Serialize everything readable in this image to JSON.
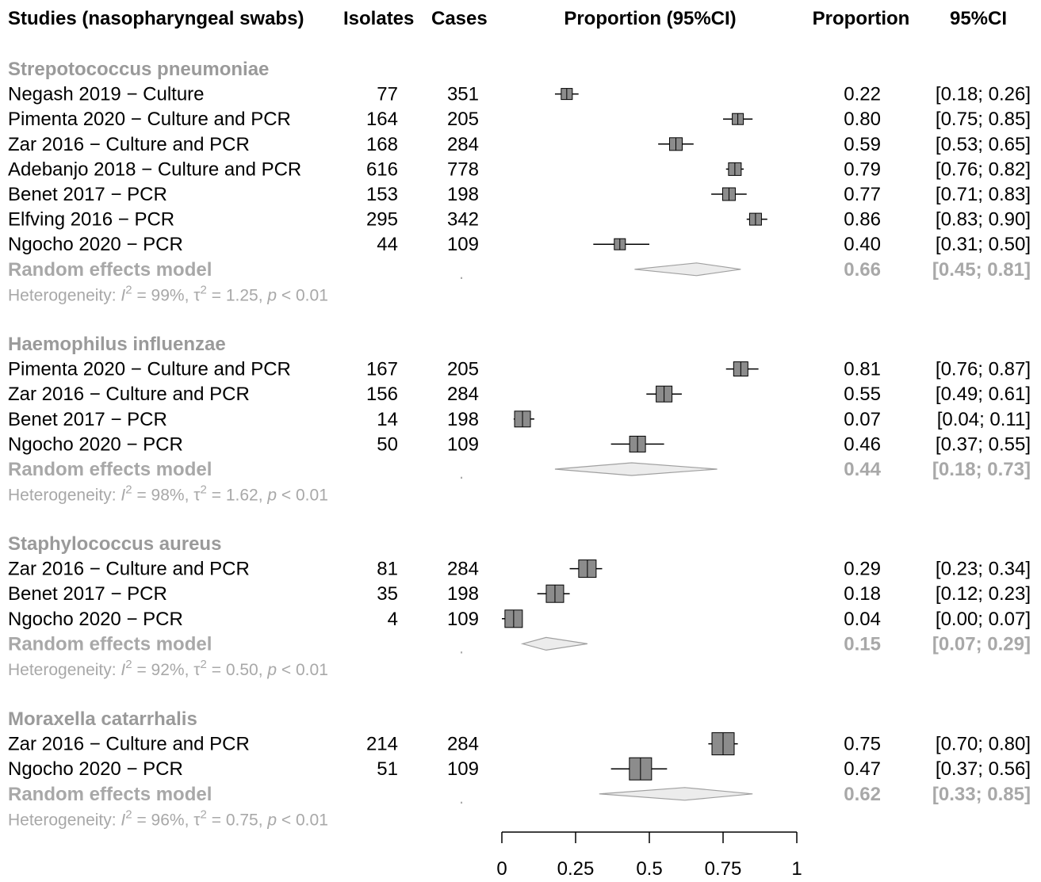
{
  "headers": {
    "studies": "Studies (nasopharyngeal swabs)",
    "isolates": "Isolates",
    "cases": "Cases",
    "plot": "Proportion (95%CI)",
    "proportion": "Proportion",
    "ci": "95%CI"
  },
  "chart_data": {
    "type": "forest",
    "xlim": [
      0,
      1
    ],
    "ticks": [
      "0",
      "0.25",
      "0.5",
      "0.75",
      "1"
    ],
    "tick_values": [
      0,
      0.25,
      0.5,
      0.75,
      1
    ],
    "groups": [
      {
        "name": "Strepotococcus pneumoniae",
        "studies": [
          {
            "label": "Negash 2019 − Culture",
            "isolates": "77",
            "cases": "351",
            "prop": 0.22,
            "lo": 0.18,
            "hi": 0.26,
            "prop_text": "0.22",
            "ci_text": "[0.18; 0.26]"
          },
          {
            "label": "Pimenta 2020 − Culture and PCR",
            "isolates": "164",
            "cases": "205",
            "prop": 0.8,
            "lo": 0.75,
            "hi": 0.85,
            "prop_text": "0.80",
            "ci_text": "[0.75; 0.85]"
          },
          {
            "label": "Zar 2016 − Culture and PCR",
            "isolates": "168",
            "cases": "284",
            "prop": 0.59,
            "lo": 0.53,
            "hi": 0.65,
            "prop_text": "0.59",
            "ci_text": "[0.53; 0.65]"
          },
          {
            "label": "Adebanjo 2018 − Culture and PCR",
            "isolates": "616",
            "cases": "778",
            "prop": 0.79,
            "lo": 0.76,
            "hi": 0.82,
            "prop_text": "0.79",
            "ci_text": "[0.76; 0.82]"
          },
          {
            "label": "Benet  2017 − PCR",
            "isolates": "153",
            "cases": "198",
            "prop": 0.77,
            "lo": 0.71,
            "hi": 0.83,
            "prop_text": "0.77",
            "ci_text": "[0.71; 0.83]"
          },
          {
            "label": "Elfving 2016 − PCR",
            "isolates": "295",
            "cases": "342",
            "prop": 0.86,
            "lo": 0.83,
            "hi": 0.9,
            "prop_text": "0.86",
            "ci_text": "[0.83; 0.90]"
          },
          {
            "label": "Ngocho 2020 − PCR",
            "isolates": "44",
            "cases": "109",
            "prop": 0.4,
            "lo": 0.31,
            "hi": 0.5,
            "prop_text": "0.40",
            "ci_text": "[0.31; 0.50]"
          }
        ],
        "model": {
          "label": "Random effects model",
          "cases": ".",
          "prop": 0.66,
          "lo": 0.45,
          "hi": 0.81,
          "prop_text": "0.66",
          "ci_text": "[0.45; 0.81]"
        },
        "het": {
          "i2": "99%",
          "tau2": "1.25",
          "p": "< 0.01"
        }
      },
      {
        "name": "Haemophilus influenzae",
        "studies": [
          {
            "label": "Pimenta 2020 − Culture and PCR",
            "isolates": "167",
            "cases": "205",
            "prop": 0.81,
            "lo": 0.76,
            "hi": 0.87,
            "prop_text": "0.81",
            "ci_text": "[0.76; 0.87]"
          },
          {
            "label": "Zar 2016 − Culture and PCR",
            "isolates": "156",
            "cases": "284",
            "prop": 0.55,
            "lo": 0.49,
            "hi": 0.61,
            "prop_text": "0.55",
            "ci_text": "[0.49; 0.61]"
          },
          {
            "label": "Benet  2017 − PCR",
            "isolates": "14",
            "cases": "198",
            "prop": 0.07,
            "lo": 0.04,
            "hi": 0.11,
            "prop_text": "0.07",
            "ci_text": "[0.04; 0.11]"
          },
          {
            "label": "Ngocho 2020 − PCR",
            "isolates": "50",
            "cases": "109",
            "prop": 0.46,
            "lo": 0.37,
            "hi": 0.55,
            "prop_text": "0.46",
            "ci_text": "[0.37; 0.55]"
          }
        ],
        "model": {
          "label": "Random effects model",
          "cases": ".",
          "prop": 0.44,
          "lo": 0.18,
          "hi": 0.73,
          "prop_text": "0.44",
          "ci_text": "[0.18; 0.73]"
        },
        "het": {
          "i2": "98%",
          "tau2": "1.62",
          "p": "< 0.01"
        }
      },
      {
        "name": "Staphylococcus aureus",
        "studies": [
          {
            "label": "Zar 2016 − Culture and PCR",
            "isolates": "81",
            "cases": "284",
            "prop": 0.29,
            "lo": 0.23,
            "hi": 0.34,
            "prop_text": "0.29",
            "ci_text": "[0.23; 0.34]"
          },
          {
            "label": "Benet  2017 − PCR",
            "isolates": "35",
            "cases": "198",
            "prop": 0.18,
            "lo": 0.12,
            "hi": 0.23,
            "prop_text": "0.18",
            "ci_text": "[0.12; 0.23]"
          },
          {
            "label": "Ngocho 2020 − PCR",
            "isolates": "4",
            "cases": "109",
            "prop": 0.04,
            "lo": 0.0,
            "hi": 0.07,
            "prop_text": "0.04",
            "ci_text": "[0.00; 0.07]"
          }
        ],
        "model": {
          "label": "Random effects model",
          "cases": ".",
          "prop": 0.15,
          "lo": 0.07,
          "hi": 0.29,
          "prop_text": "0.15",
          "ci_text": "[0.07; 0.29]"
        },
        "het": {
          "i2": "92%",
          "tau2": "0.50",
          "p": "< 0.01"
        }
      },
      {
        "name": "Moraxella catarrhalis",
        "studies": [
          {
            "label": "Zar 2016 − Culture and PCR",
            "isolates": "214",
            "cases": "284",
            "prop": 0.75,
            "lo": 0.7,
            "hi": 0.8,
            "prop_text": "0.75",
            "ci_text": "[0.70; 0.80]"
          },
          {
            "label": "Ngocho 2020 − PCR",
            "isolates": "51",
            "cases": "109",
            "prop": 0.47,
            "lo": 0.37,
            "hi": 0.56,
            "prop_text": "0.47",
            "ci_text": "[0.37; 0.56]"
          }
        ],
        "model": {
          "label": "Random effects model",
          "cases": ".",
          "prop": 0.62,
          "lo": 0.33,
          "hi": 0.85,
          "prop_text": "0.62",
          "ci_text": "[0.33; 0.85]"
        },
        "het": {
          "i2": "96%",
          "tau2": "0.75",
          "p": "< 0.01"
        }
      }
    ]
  },
  "colors": {
    "text": "#000000",
    "muted": "#a8a8a8",
    "box": "#8c8c8c",
    "diamond": "#ececec",
    "diamond_stroke": "#a0a0a0"
  }
}
